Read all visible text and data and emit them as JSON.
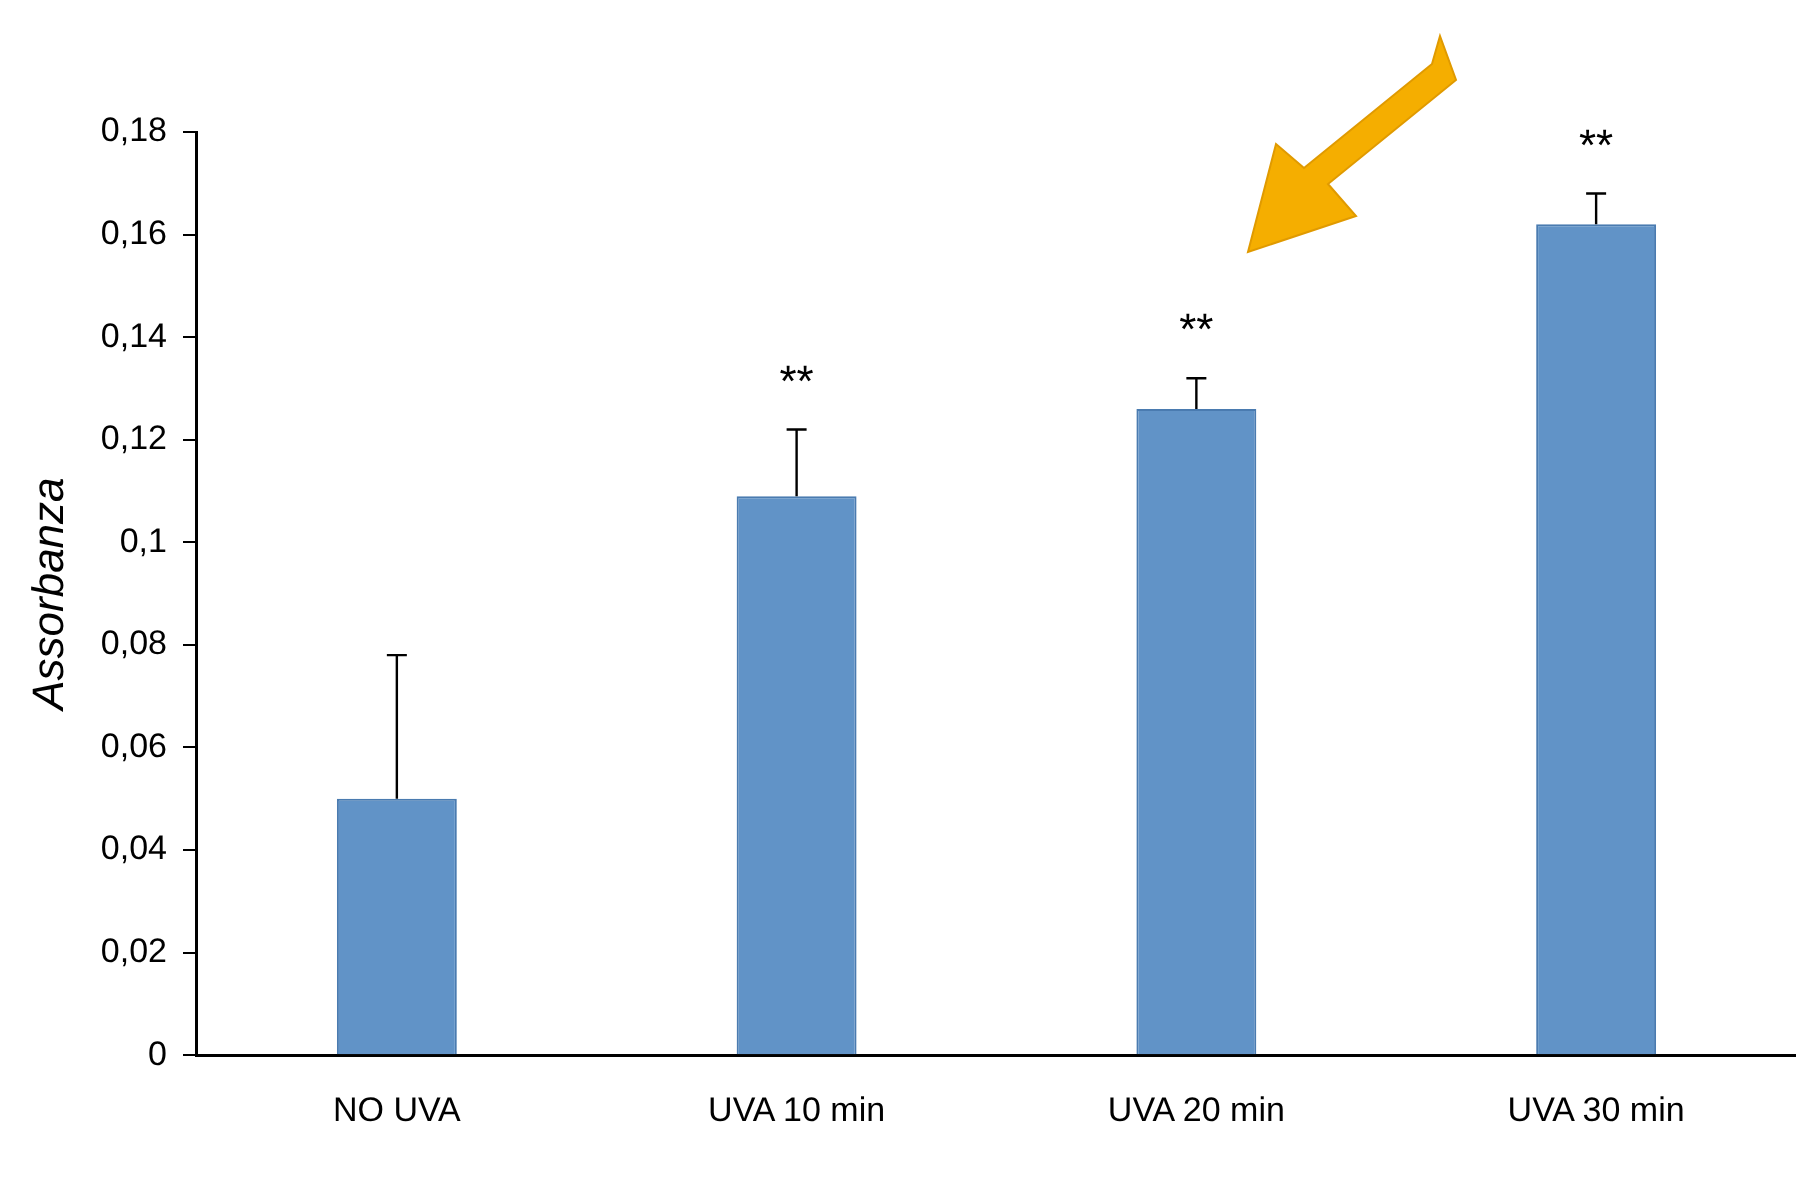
{
  "chart_data": {
    "type": "bar",
    "ylabel": "Assorbanza",
    "categories": [
      "NO UVA",
      "UVA 10 min",
      "UVA 20 min",
      "UVA 30 min"
    ],
    "values": [
      0.05,
      0.109,
      0.126,
      0.162
    ],
    "errors": [
      [
        0.05,
        0.078
      ],
      [
        0.109,
        0.122
      ],
      [
        0.126,
        0.132
      ],
      [
        0.162,
        0.168
      ]
    ],
    "color": "#6193c7",
    "ylim": [
      0,
      0.18
    ],
    "yticks": [
      0,
      {
        "value": 0.02,
        "label": "0,02"
      },
      {
        "value": 0.04,
        "label": "0,04"
      },
      {
        "value": 0.06,
        "label": "0,06"
      },
      {
        "value": 0.08,
        "label": "0,08"
      },
      {
        "value": 0.1,
        "label": "0,1"
      },
      {
        "value": 0.12,
        "label": "0,12"
      },
      {
        "value": 0.14,
        "label": "0,14"
      },
      {
        "value": 0.16,
        "label": "0,16"
      },
      {
        "value": 0.18,
        "label": "0,18"
      }
    ],
    "annotations": [
      "**",
      "**",
      "**"
    ],
    "grid": false,
    "legend": false
  }
}
